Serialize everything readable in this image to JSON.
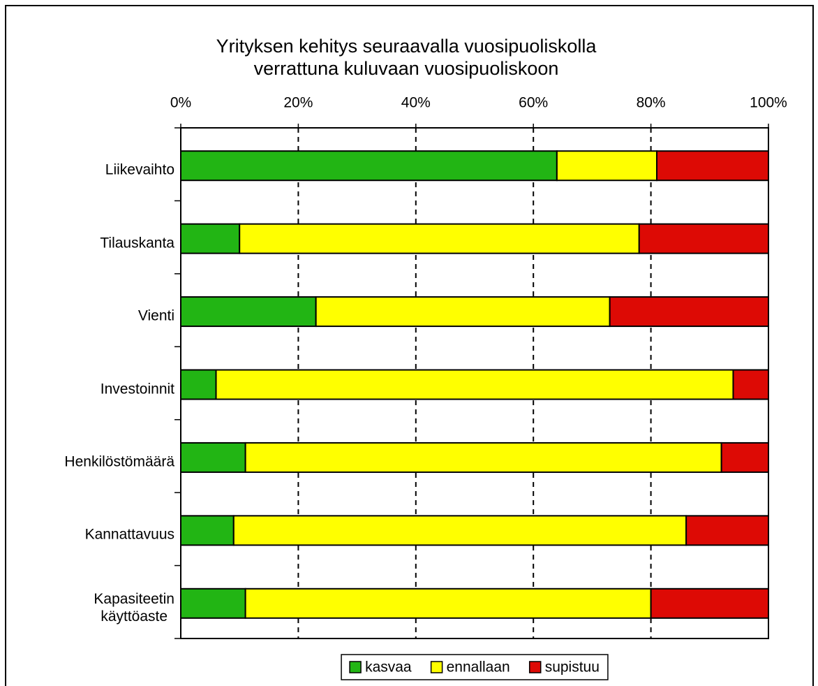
{
  "chart_data": {
    "type": "stacked_bar_horizontal",
    "title": "Yrityksen kehitys seuraavalla vuosipuoliskolla\nverrattuna kuluvaan vuosipuoliskoon",
    "categories": [
      "Liikevaihto",
      "Tilauskanta",
      "Vienti",
      "Investoinnit",
      "Henkilöstömäärä",
      "Kannattavuus",
      "Kapasiteetin\nkäyttöaste"
    ],
    "series": [
      {
        "name": "kasvaa",
        "color": "#22b514",
        "values": [
          64,
          10,
          23,
          6,
          11,
          9,
          11
        ]
      },
      {
        "name": "ennallaan",
        "color": "#ffff00",
        "values": [
          17,
          68,
          50,
          88,
          81,
          77,
          69
        ]
      },
      {
        "name": "supistuu",
        "color": "#dd0a05",
        "values": [
          19,
          22,
          27,
          6,
          8,
          14,
          20
        ]
      }
    ],
    "xlim": [
      0,
      100
    ],
    "xticks": [
      {
        "value": 0,
        "label": "0%"
      },
      {
        "value": 20,
        "label": "20%"
      },
      {
        "value": 40,
        "label": "40%"
      },
      {
        "value": 60,
        "label": "60%"
      },
      {
        "value": 80,
        "label": "80%"
      },
      {
        "value": 100,
        "label": "100%"
      }
    ],
    "grid": true,
    "legend": "bottom"
  }
}
